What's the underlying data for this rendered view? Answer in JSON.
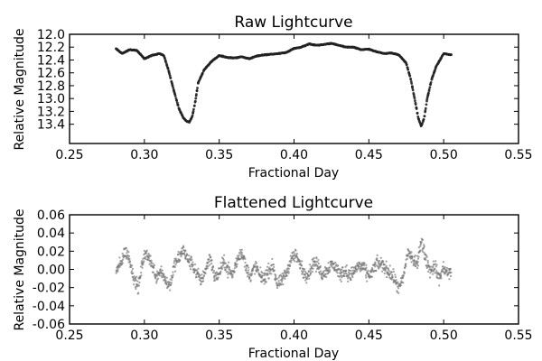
{
  "chart_data": [
    {
      "type": "scatter",
      "title": "Raw Lightcurve",
      "xlabel": "Fractional Day",
      "ylabel": "Relative Magnitude",
      "xlim": [
        0.25,
        0.55
      ],
      "ylim": [
        13.7,
        12.0
      ],
      "y_inverted": true,
      "x_data_range": [
        0.281,
        0.505
      ],
      "xticks": [
        "0.25",
        "0.30",
        "0.35",
        "0.40",
        "0.45",
        "0.50",
        "0.55"
      ],
      "yticks": [
        "12.0",
        "12.2",
        "12.4",
        "12.6",
        "12.8",
        "13.0",
        "13.2",
        "13.4"
      ],
      "grid": false,
      "marker_color": "#222222",
      "series": [
        {
          "x": [
            0.281,
            0.285,
            0.29,
            0.295,
            0.3,
            0.305,
            0.31,
            0.313,
            0.316,
            0.32,
            0.323,
            0.326,
            0.328,
            0.33,
            0.332,
            0.334,
            0.336,
            0.34,
            0.345,
            0.35,
            0.355,
            0.36,
            0.365,
            0.37,
            0.375,
            0.38,
            0.385,
            0.39,
            0.395,
            0.4,
            0.405,
            0.41,
            0.415,
            0.42,
            0.425,
            0.43,
            0.435,
            0.44,
            0.445,
            0.45,
            0.455,
            0.46,
            0.465,
            0.47,
            0.475,
            0.478,
            0.481,
            0.483,
            0.485,
            0.487,
            0.489,
            0.492,
            0.495,
            0.5,
            0.505
          ],
          "y": [
            12.22,
            12.3,
            12.24,
            12.25,
            12.38,
            12.33,
            12.3,
            12.33,
            12.55,
            12.9,
            13.15,
            13.3,
            13.35,
            13.37,
            13.28,
            13.05,
            12.75,
            12.55,
            12.42,
            12.33,
            12.36,
            12.37,
            12.35,
            12.38,
            12.34,
            12.32,
            12.31,
            12.3,
            12.28,
            12.22,
            12.2,
            12.15,
            12.17,
            12.16,
            12.14,
            12.17,
            12.2,
            12.2,
            12.24,
            12.23,
            12.27,
            12.3,
            12.29,
            12.32,
            12.45,
            12.7,
            13.05,
            13.3,
            13.43,
            13.3,
            13.0,
            12.7,
            12.5,
            12.3,
            12.32
          ]
        }
      ]
    },
    {
      "type": "scatter",
      "title": "Flattened Lightcurve",
      "xlabel": "Fractional Day",
      "ylabel": "Relative Magnitude",
      "xlim": [
        0.25,
        0.55
      ],
      "ylim": [
        -0.06,
        0.06
      ],
      "x_data_range": [
        0.281,
        0.505
      ],
      "xticks": [
        "0.25",
        "0.30",
        "0.35",
        "0.40",
        "0.45",
        "0.50",
        "0.55"
      ],
      "yticks": [
        "0.06",
        "0.04",
        "0.02",
        "0.00",
        "-0.02",
        "-0.04",
        "-0.06"
      ],
      "grid": false,
      "marker_color": "#777777",
      "series": [
        {
          "x": [
            0.281,
            0.284,
            0.287,
            0.29,
            0.293,
            0.296,
            0.299,
            0.302,
            0.305,
            0.308,
            0.311,
            0.314,
            0.317,
            0.32,
            0.323,
            0.326,
            0.329,
            0.332,
            0.335,
            0.338,
            0.341,
            0.344,
            0.347,
            0.35,
            0.353,
            0.356,
            0.359,
            0.362,
            0.365,
            0.368,
            0.371,
            0.374,
            0.377,
            0.38,
            0.383,
            0.386,
            0.389,
            0.392,
            0.395,
            0.398,
            0.401,
            0.404,
            0.407,
            0.41,
            0.413,
            0.416,
            0.419,
            0.422,
            0.425,
            0.428,
            0.431,
            0.434,
            0.437,
            0.44,
            0.443,
            0.446,
            0.449,
            0.452,
            0.455,
            0.458,
            0.461,
            0.464,
            0.467,
            0.47,
            0.473,
            0.476,
            0.479,
            0.482,
            0.485,
            0.488,
            0.491,
            0.494,
            0.497,
            0.5,
            0.503,
            0.505
          ],
          "y": [
            -0.002,
            0.005,
            0.02,
            0.012,
            -0.01,
            -0.02,
            0.01,
            0.018,
            0.005,
            -0.008,
            0.0,
            -0.012,
            -0.018,
            0.004,
            0.012,
            0.022,
            0.01,
            0.006,
            -0.005,
            -0.012,
            0.0,
            0.015,
            -0.01,
            -0.004,
            0.008,
            0.0,
            -0.006,
            0.01,
            0.02,
            0.002,
            -0.008,
            0.004,
            -0.006,
            -0.01,
            -0.002,
            0.004,
            -0.018,
            -0.012,
            -0.004,
            0.012,
            0.016,
            0.006,
            -0.006,
            -0.004,
            0.008,
            0.004,
            -0.006,
            0.0,
            0.006,
            0.002,
            -0.006,
            0.0,
            -0.008,
            -0.002,
            0.004,
            0.002,
            -0.006,
            -0.004,
            0.006,
            0.006,
            0.002,
            -0.004,
            -0.01,
            -0.022,
            -0.01,
            0.02,
            0.012,
            0.004,
            0.032,
            0.012,
            -0.002,
            0.004,
            -0.01,
            0.002,
            -0.006,
            -0.002
          ]
        }
      ]
    }
  ]
}
